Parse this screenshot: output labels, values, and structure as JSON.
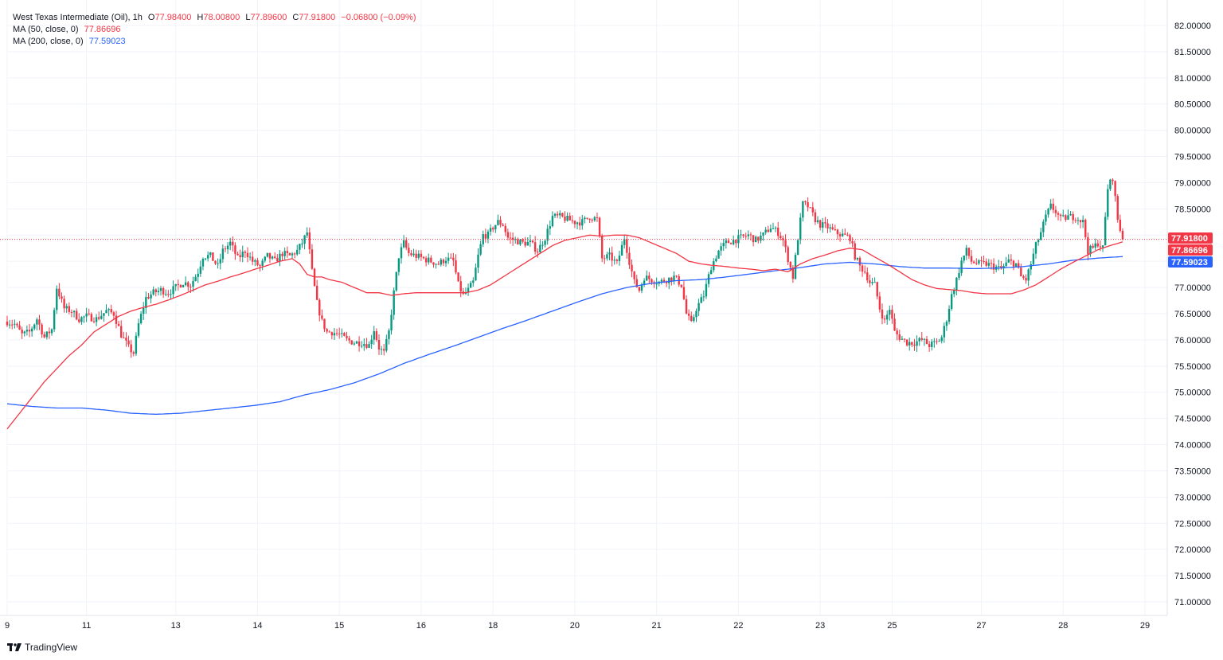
{
  "header": {
    "symbol": "West Texas Intermediate (Oil), 1h",
    "ohlc": [
      {
        "k": "O",
        "v": "77.98400"
      },
      {
        "k": "H",
        "v": "78.00800"
      },
      {
        "k": "L",
        "v": "77.89600"
      },
      {
        "k": "C",
        "v": "77.91800"
      }
    ],
    "change": "−0.06800 (−0.09%)",
    "ma50_label": "MA (50, close, 0)",
    "ma50_value": "77.86696",
    "ma200_label": "MA (200, close, 0)",
    "ma200_value": "77.59023"
  },
  "brand": {
    "name": "TradingView"
  },
  "colors": {
    "up": "#089981",
    "down": "#f23645",
    "ma50": "#f23645",
    "ma200": "#2962ff",
    "grid": "#f0f3fa",
    "axis": "#e0e3eb"
  },
  "chart_data": {
    "type": "candlestick",
    "ylim": [
      70.8,
      82.25
    ],
    "xlim": [
      0,
      468
    ],
    "y_ticks": [
      "82.00000",
      "81.50000",
      "81.00000",
      "80.50000",
      "80.00000",
      "79.50000",
      "79.00000",
      "78.50000",
      "78.00000",
      "77.50000",
      "77.00000",
      "76.50000",
      "76.00000",
      "75.50000",
      "75.00000",
      "74.50000",
      "74.00000",
      "73.50000",
      "73.00000",
      "72.50000",
      "72.00000",
      "71.50000",
      "71.00000"
    ],
    "x_ticks": [
      {
        "label": "9",
        "x": 0
      },
      {
        "label": "11",
        "x": 32
      },
      {
        "label": "13",
        "x": 68
      },
      {
        "label": "14",
        "x": 101
      },
      {
        "label": "15",
        "x": 134
      },
      {
        "label": "16",
        "x": 167
      },
      {
        "label": "18",
        "x": 196
      },
      {
        "label": "20",
        "x": 229
      },
      {
        "label": "21",
        "x": 262
      },
      {
        "label": "22",
        "x": 295
      },
      {
        "label": "23",
        "x": 328
      },
      {
        "label": "25",
        "x": 357
      },
      {
        "label": "27",
        "x": 393
      },
      {
        "label": "28",
        "x": 426
      },
      {
        "label": "29",
        "x": 459
      }
    ],
    "close_anchors": [
      [
        0,
        76.35
      ],
      [
        3,
        76.3
      ],
      [
        6,
        76.1
      ],
      [
        9,
        76.15
      ],
      [
        12,
        76.4
      ],
      [
        15,
        76.05
      ],
      [
        18,
        76.2
      ],
      [
        20,
        77.0
      ],
      [
        23,
        76.6
      ],
      [
        26,
        76.55
      ],
      [
        29,
        76.4
      ],
      [
        32,
        76.45
      ],
      [
        36,
        76.4
      ],
      [
        40,
        76.55
      ],
      [
        43,
        76.5
      ],
      [
        46,
        76.1
      ],
      [
        49,
        75.85
      ],
      [
        51,
        75.75
      ],
      [
        53,
        76.3
      ],
      [
        56,
        76.8
      ],
      [
        59,
        76.9
      ],
      [
        62,
        76.95
      ],
      [
        65,
        76.9
      ],
      [
        68,
        77.0
      ],
      [
        71,
        77.1
      ],
      [
        74,
        77.05
      ],
      [
        77,
        77.3
      ],
      [
        79,
        77.6
      ],
      [
        82,
        77.6
      ],
      [
        85,
        77.4
      ],
      [
        87,
        77.7
      ],
      [
        90,
        77.85
      ],
      [
        93,
        77.55
      ],
      [
        96,
        77.7
      ],
      [
        99,
        77.5
      ],
      [
        102,
        77.4
      ],
      [
        105,
        77.6
      ],
      [
        108,
        77.5
      ],
      [
        111,
        77.65
      ],
      [
        114,
        77.6
      ],
      [
        117,
        77.7
      ],
      [
        119,
        77.85
      ],
      [
        121,
        78.05
      ],
      [
        123,
        77.3
      ],
      [
        125,
        76.7
      ],
      [
        127,
        76.35
      ],
      [
        129,
        76.15
      ],
      [
        131,
        76.15
      ],
      [
        134,
        76.1
      ],
      [
        137,
        76.0
      ],
      [
        140,
        75.95
      ],
      [
        143,
        75.95
      ],
      [
        146,
        75.9
      ],
      [
        148,
        76.2
      ],
      [
        150,
        75.85
      ],
      [
        152,
        75.75
      ],
      [
        154,
        76.15
      ],
      [
        156,
        76.9
      ],
      [
        158,
        77.6
      ],
      [
        160,
        77.85
      ],
      [
        162,
        77.65
      ],
      [
        165,
        77.6
      ],
      [
        168,
        77.55
      ],
      [
        171,
        77.5
      ],
      [
        174,
        77.45
      ],
      [
        177,
        77.55
      ],
      [
        180,
        77.5
      ],
      [
        182,
        77.05
      ],
      [
        184,
        76.85
      ],
      [
        186,
        76.95
      ],
      [
        188,
        77.1
      ],
      [
        190,
        77.6
      ],
      [
        192,
        78.0
      ],
      [
        194,
        78.0
      ],
      [
        196,
        78.15
      ],
      [
        198,
        78.25
      ],
      [
        200,
        78.2
      ],
      [
        202,
        77.95
      ],
      [
        205,
        77.9
      ],
      [
        208,
        77.85
      ],
      [
        211,
        77.85
      ],
      [
        214,
        77.7
      ],
      [
        217,
        77.95
      ],
      [
        220,
        78.35
      ],
      [
        223,
        78.35
      ],
      [
        226,
        78.3
      ],
      [
        229,
        78.25
      ],
      [
        232,
        78.25
      ],
      [
        235,
        78.35
      ],
      [
        238,
        78.3
      ],
      [
        240,
        77.55
      ],
      [
        243,
        77.6
      ],
      [
        246,
        77.45
      ],
      [
        249,
        77.95
      ],
      [
        251,
        77.5
      ],
      [
        253,
        77.1
      ],
      [
        255,
        76.95
      ],
      [
        257,
        77.2
      ],
      [
        260,
        77.15
      ],
      [
        263,
        77.1
      ],
      [
        266,
        77.15
      ],
      [
        269,
        77.2
      ],
      [
        272,
        77.05
      ],
      [
        274,
        76.5
      ],
      [
        276,
        76.3
      ],
      [
        278,
        76.6
      ],
      [
        281,
        76.85
      ],
      [
        284,
        77.4
      ],
      [
        287,
        77.7
      ],
      [
        290,
        77.85
      ],
      [
        293,
        77.9
      ],
      [
        296,
        77.95
      ],
      [
        299,
        78.0
      ],
      [
        302,
        77.9
      ],
      [
        305,
        78.0
      ],
      [
        308,
        78.15
      ],
      [
        311,
        78.05
      ],
      [
        313,
        77.9
      ],
      [
        315,
        77.55
      ],
      [
        317,
        77.2
      ],
      [
        319,
        77.95
      ],
      [
        321,
        78.6
      ],
      [
        323,
        78.55
      ],
      [
        326,
        78.3
      ],
      [
        328,
        78.2
      ],
      [
        331,
        78.15
      ],
      [
        334,
        78.05
      ],
      [
        337,
        78.0
      ],
      [
        340,
        77.95
      ],
      [
        342,
        77.6
      ],
      [
        344,
        77.4
      ],
      [
        346,
        77.3
      ],
      [
        348,
        77.1
      ],
      [
        350,
        77.05
      ],
      [
        352,
        76.6
      ],
      [
        354,
        76.35
      ],
      [
        356,
        76.6
      ],
      [
        358,
        76.15
      ],
      [
        360,
        76.05
      ],
      [
        363,
        75.95
      ],
      [
        366,
        75.95
      ],
      [
        369,
        76.0
      ],
      [
        372,
        75.9
      ],
      [
        375,
        75.95
      ],
      [
        377,
        76.05
      ],
      [
        379,
        76.4
      ],
      [
        381,
        76.85
      ],
      [
        383,
        77.15
      ],
      [
        385,
        77.5
      ],
      [
        387,
        77.7
      ],
      [
        389,
        77.5
      ],
      [
        392,
        77.45
      ],
      [
        395,
        77.45
      ],
      [
        398,
        77.4
      ],
      [
        401,
        77.35
      ],
      [
        404,
        77.5
      ],
      [
        407,
        77.45
      ],
      [
        409,
        77.2
      ],
      [
        411,
        77.15
      ],
      [
        413,
        77.45
      ],
      [
        415,
        77.8
      ],
      [
        417,
        78.05
      ],
      [
        419,
        78.35
      ],
      [
        421,
        78.55
      ],
      [
        423,
        78.45
      ],
      [
        425,
        78.3
      ],
      [
        428,
        78.35
      ],
      [
        431,
        78.35
      ],
      [
        434,
        78.25
      ],
      [
        436,
        77.7
      ],
      [
        438,
        77.75
      ],
      [
        440,
        77.85
      ],
      [
        442,
        77.75
      ],
      [
        444,
        78.9
      ],
      [
        446,
        79.1
      ],
      [
        448,
        78.3
      ],
      [
        450,
        77.92
      ]
    ],
    "ma50_anchors": [
      [
        0,
        74.3
      ],
      [
        5,
        74.6
      ],
      [
        10,
        74.9
      ],
      [
        15,
        75.2
      ],
      [
        20,
        75.45
      ],
      [
        25,
        75.7
      ],
      [
        30,
        75.9
      ],
      [
        35,
        76.15
      ],
      [
        40,
        76.3
      ],
      [
        45,
        76.45
      ],
      [
        50,
        76.55
      ],
      [
        55,
        76.62
      ],
      [
        60,
        76.68
      ],
      [
        65,
        76.76
      ],
      [
        70,
        76.85
      ],
      [
        75,
        76.95
      ],
      [
        80,
        77.05
      ],
      [
        85,
        77.12
      ],
      [
        90,
        77.2
      ],
      [
        95,
        77.27
      ],
      [
        100,
        77.35
      ],
      [
        105,
        77.42
      ],
      [
        110,
        77.5
      ],
      [
        115,
        77.55
      ],
      [
        118,
        77.45
      ],
      [
        121,
        77.25
      ],
      [
        124,
        77.2
      ],
      [
        127,
        77.2
      ],
      [
        130,
        77.15
      ],
      [
        135,
        77.1
      ],
      [
        140,
        77.0
      ],
      [
        145,
        76.9
      ],
      [
        150,
        76.9
      ],
      [
        155,
        76.85
      ],
      [
        160,
        76.88
      ],
      [
        165,
        76.9
      ],
      [
        170,
        76.9
      ],
      [
        175,
        76.9
      ],
      [
        180,
        76.9
      ],
      [
        185,
        76.9
      ],
      [
        190,
        76.95
      ],
      [
        195,
        77.05
      ],
      [
        200,
        77.2
      ],
      [
        205,
        77.35
      ],
      [
        210,
        77.5
      ],
      [
        215,
        77.65
      ],
      [
        220,
        77.8
      ],
      [
        225,
        77.9
      ],
      [
        230,
        77.95
      ],
      [
        235,
        78.0
      ],
      [
        240,
        77.98
      ],
      [
        245,
        78.0
      ],
      [
        250,
        78.0
      ],
      [
        255,
        77.95
      ],
      [
        260,
        77.85
      ],
      [
        265,
        77.75
      ],
      [
        270,
        77.65
      ],
      [
        275,
        77.5
      ],
      [
        280,
        77.45
      ],
      [
        285,
        77.42
      ],
      [
        290,
        77.4
      ],
      [
        295,
        77.37
      ],
      [
        300,
        77.35
      ],
      [
        305,
        77.32
      ],
      [
        310,
        77.35
      ],
      [
        315,
        77.3
      ],
      [
        320,
        77.45
      ],
      [
        325,
        77.55
      ],
      [
        330,
        77.62
      ],
      [
        335,
        77.7
      ],
      [
        340,
        77.75
      ],
      [
        345,
        77.72
      ],
      [
        350,
        77.58
      ],
      [
        355,
        77.45
      ],
      [
        360,
        77.3
      ],
      [
        365,
        77.15
      ],
      [
        370,
        77.05
      ],
      [
        375,
        76.98
      ],
      [
        380,
        76.96
      ],
      [
        385,
        76.94
      ],
      [
        390,
        76.9
      ],
      [
        395,
        76.88
      ],
      [
        400,
        76.88
      ],
      [
        405,
        76.88
      ],
      [
        410,
        76.95
      ],
      [
        415,
        77.05
      ],
      [
        420,
        77.2
      ],
      [
        425,
        77.35
      ],
      [
        430,
        77.48
      ],
      [
        435,
        77.6
      ],
      [
        440,
        77.72
      ],
      [
        445,
        77.8
      ],
      [
        450,
        77.87
      ]
    ],
    "ma200_anchors": [
      [
        0,
        74.78
      ],
      [
        10,
        74.73
      ],
      [
        20,
        74.7
      ],
      [
        30,
        74.7
      ],
      [
        40,
        74.66
      ],
      [
        50,
        74.6
      ],
      [
        60,
        74.58
      ],
      [
        70,
        74.6
      ],
      [
        80,
        74.65
      ],
      [
        90,
        74.7
      ],
      [
        100,
        74.75
      ],
      [
        110,
        74.82
      ],
      [
        120,
        74.95
      ],
      [
        130,
        75.05
      ],
      [
        140,
        75.18
      ],
      [
        150,
        75.35
      ],
      [
        160,
        75.55
      ],
      [
        170,
        75.72
      ],
      [
        180,
        75.88
      ],
      [
        190,
        76.05
      ],
      [
        200,
        76.22
      ],
      [
        210,
        76.38
      ],
      [
        220,
        76.55
      ],
      [
        230,
        76.72
      ],
      [
        240,
        76.88
      ],
      [
        250,
        77.0
      ],
      [
        260,
        77.08
      ],
      [
        270,
        77.13
      ],
      [
        280,
        77.15
      ],
      [
        290,
        77.2
      ],
      [
        300,
        77.26
      ],
      [
        310,
        77.32
      ],
      [
        320,
        77.38
      ],
      [
        330,
        77.45
      ],
      [
        340,
        77.48
      ],
      [
        350,
        77.45
      ],
      [
        360,
        77.4
      ],
      [
        370,
        77.37
      ],
      [
        380,
        77.37
      ],
      [
        390,
        77.36
      ],
      [
        400,
        77.37
      ],
      [
        410,
        77.4
      ],
      [
        420,
        77.45
      ],
      [
        430,
        77.52
      ],
      [
        440,
        77.56
      ],
      [
        450,
        77.59
      ]
    ],
    "price_tags": [
      {
        "label": "77.91800",
        "value": 77.918,
        "color": "#f23645"
      },
      {
        "label": "77.86696",
        "value": 77.86696,
        "color": "#f23645"
      },
      {
        "label": "77.59023",
        "value": 77.59023,
        "color": "#2962ff"
      }
    ],
    "last_price": 77.918
  }
}
